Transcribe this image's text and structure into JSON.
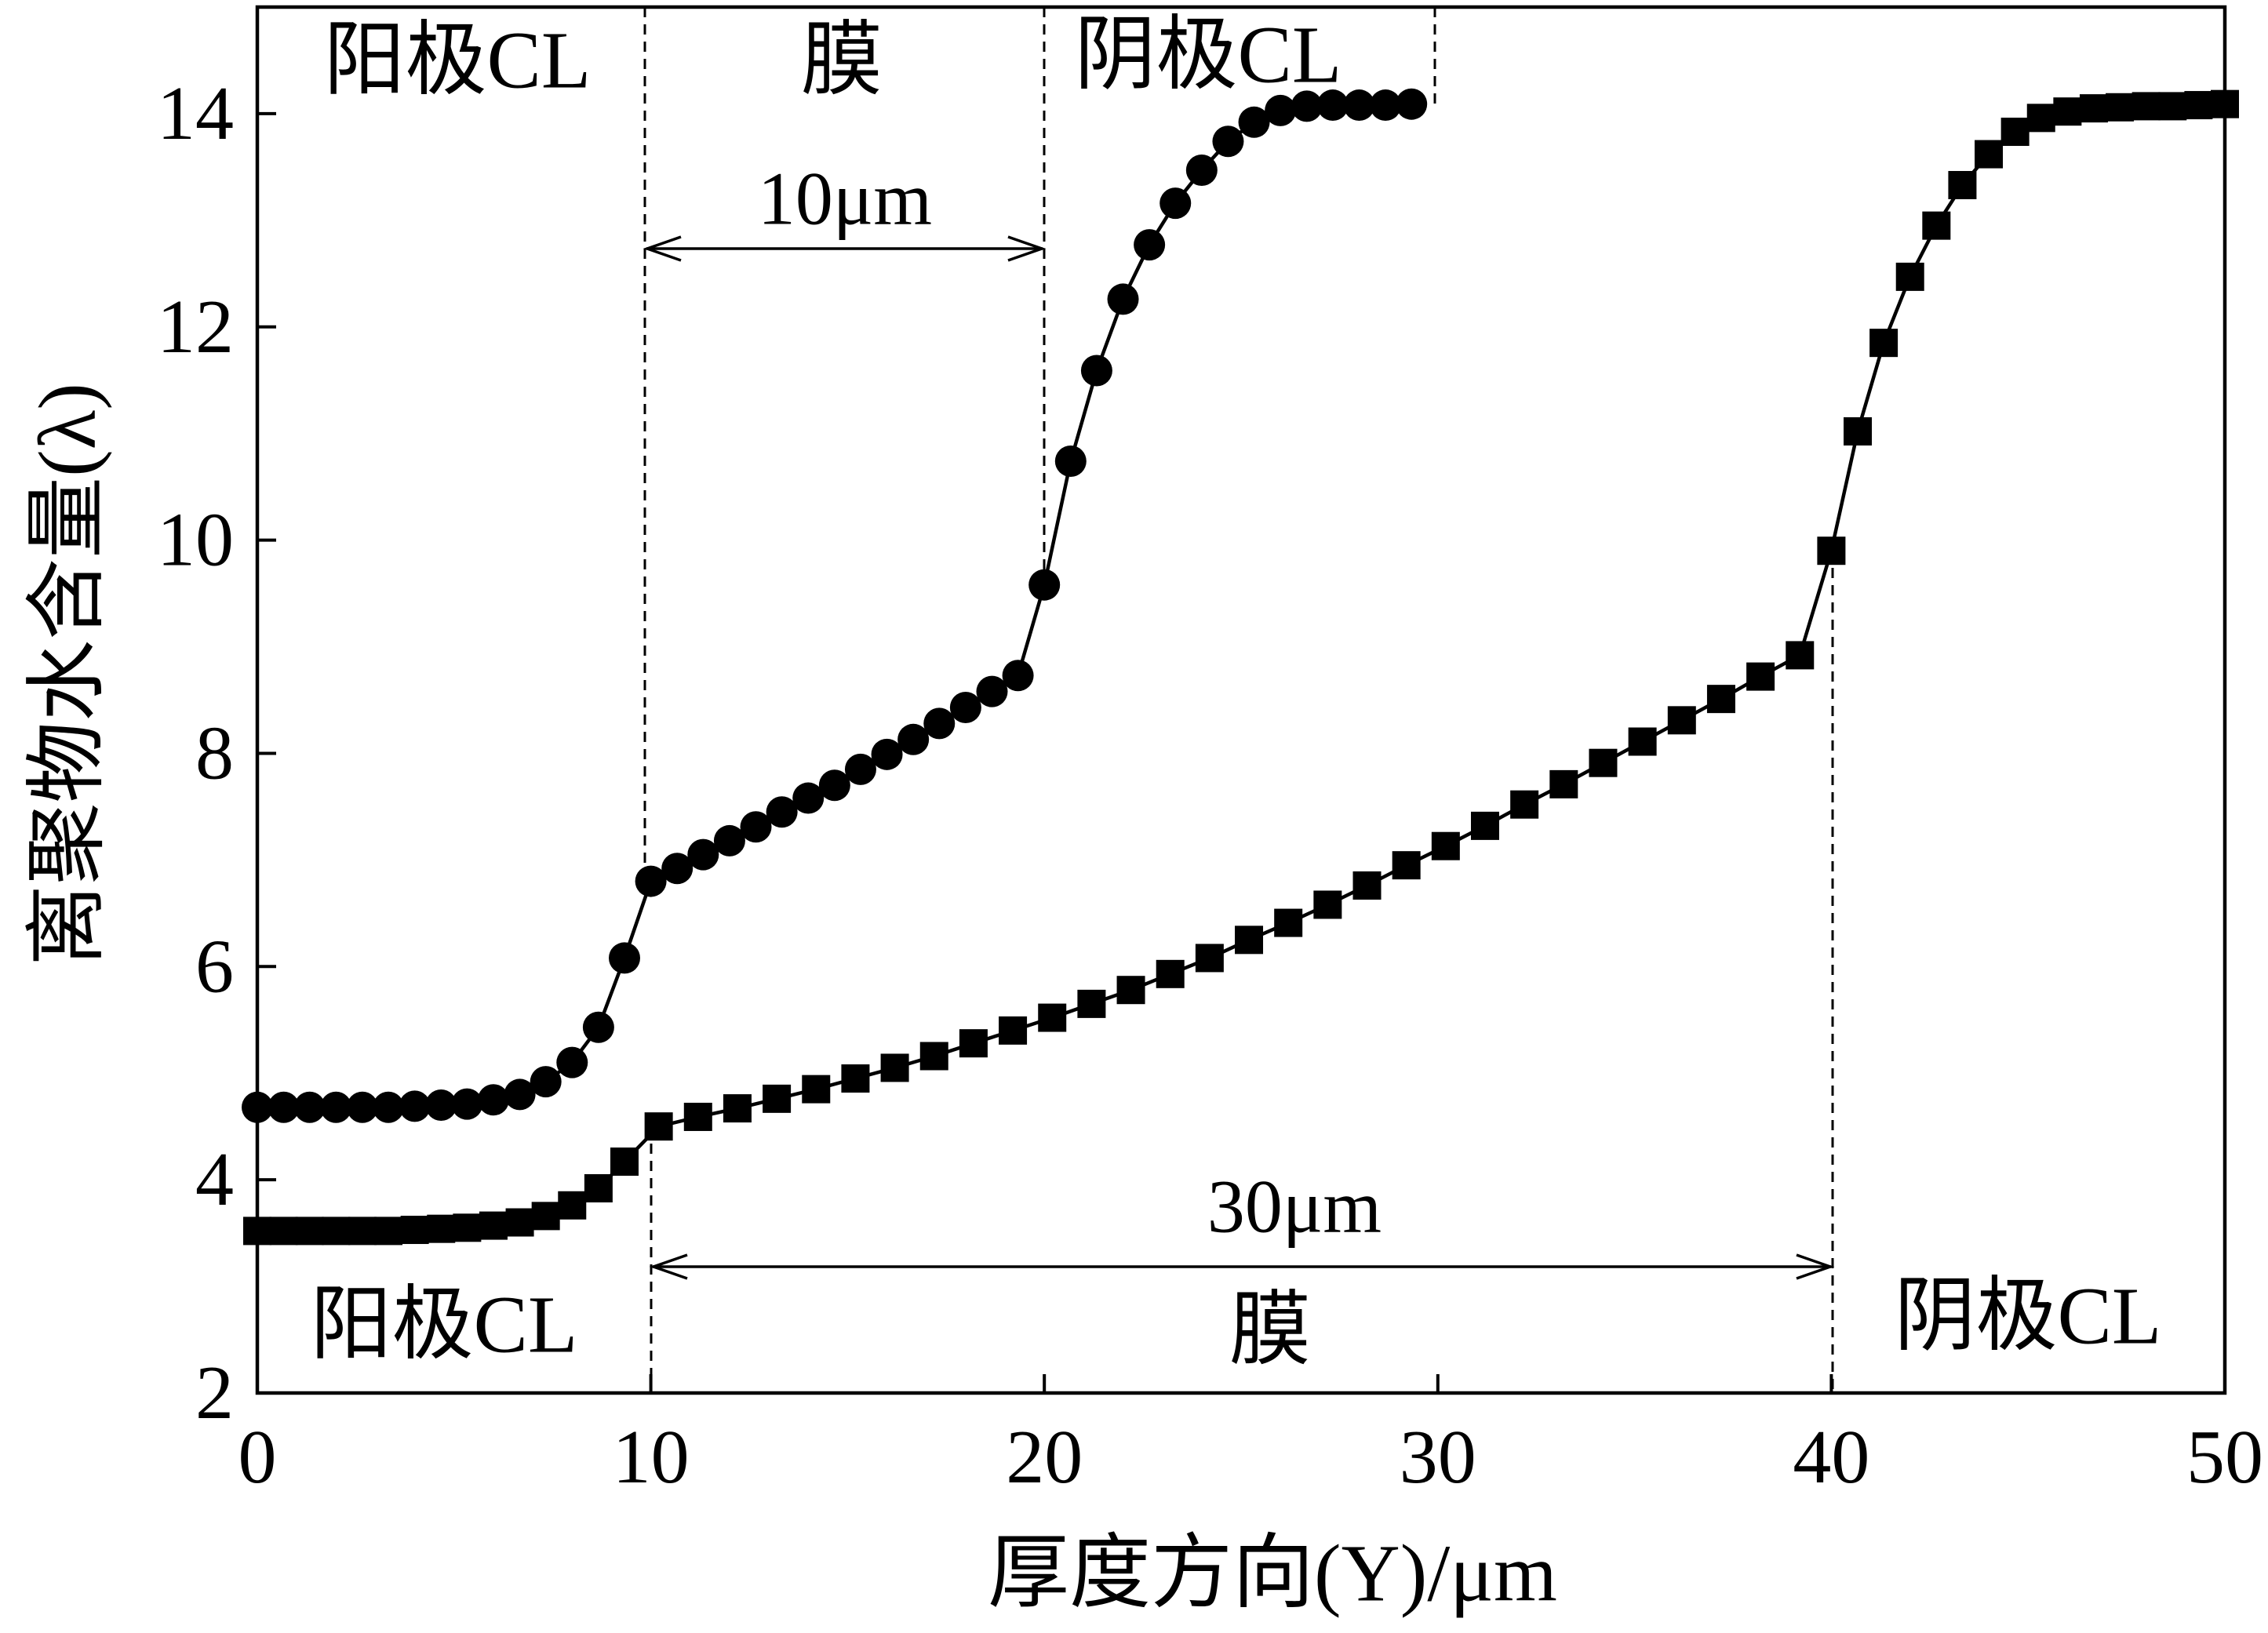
{
  "chart_data": {
    "type": "line",
    "xlabel": "厚度方向(Y)/μm",
    "ylabel": "离聚物水含量(λ)",
    "xlim": [
      0,
      50
    ],
    "ylim": [
      2,
      15
    ],
    "xticks": [
      0,
      10,
      20,
      30,
      40,
      50
    ],
    "yticks": [
      2,
      4,
      6,
      8,
      10,
      12,
      14
    ],
    "grid": false,
    "series": [
      {
        "marker": "circle",
        "color": "#000000",
        "x": [
          0,
          0.67,
          1.33,
          2,
          2.67,
          3.33,
          4,
          4.67,
          5.33,
          6,
          6.67,
          7.33,
          8,
          8.67,
          9.33,
          10,
          10.67,
          11.33,
          12,
          12.67,
          13.33,
          14,
          14.67,
          15.33,
          16,
          16.67,
          17.33,
          18,
          18.67,
          19.33,
          20,
          20.67,
          21.33,
          22,
          22.67,
          23.33,
          24,
          24.67,
          25.33,
          26,
          26.67,
          27.33,
          28,
          28.67,
          29.33
        ],
        "y": [
          4.68,
          4.68,
          4.68,
          4.68,
          4.68,
          4.68,
          4.69,
          4.7,
          4.71,
          4.75,
          4.8,
          4.92,
          5.1,
          5.43,
          6.08,
          6.8,
          6.92,
          7.05,
          7.18,
          7.31,
          7.45,
          7.58,
          7.7,
          7.85,
          7.99,
          8.13,
          8.28,
          8.43,
          8.58,
          8.73,
          9.58,
          10.74,
          11.59,
          12.26,
          12.77,
          13.16,
          13.47,
          13.74,
          13.92,
          14.03,
          14.07,
          14.08,
          14.08,
          14.08,
          14.09
        ]
      },
      {
        "marker": "square",
        "color": "#000000",
        "x": [
          0,
          0.67,
          1.33,
          2,
          2.67,
          3.33,
          4,
          4.67,
          5.33,
          6,
          6.67,
          7.33,
          8,
          8.67,
          9.33,
          10.2,
          11.2,
          12.2,
          13.2,
          14.2,
          15.2,
          16.2,
          17.2,
          18.2,
          19.2,
          20.2,
          21.2,
          22.2,
          23.2,
          24.2,
          25.2,
          26.2,
          27.2,
          28.2,
          29.2,
          30.2,
          31.2,
          32.2,
          33.2,
          34.2,
          35.2,
          36.2,
          37.2,
          38.2,
          39.2,
          40,
          40.67,
          41.33,
          42,
          42.67,
          43.33,
          44,
          44.67,
          45.33,
          46,
          46.67,
          47.33,
          48,
          48.67,
          49.33,
          50
        ],
        "y": [
          3.52,
          3.52,
          3.52,
          3.52,
          3.52,
          3.52,
          3.53,
          3.54,
          3.55,
          3.57,
          3.6,
          3.66,
          3.76,
          3.92,
          4.17,
          4.5,
          4.59,
          4.67,
          4.76,
          4.85,
          4.95,
          5.05,
          5.16,
          5.28,
          5.4,
          5.52,
          5.65,
          5.78,
          5.93,
          6.08,
          6.25,
          6.41,
          6.58,
          6.76,
          6.95,
          7.13,
          7.32,
          7.52,
          7.71,
          7.91,
          8.11,
          8.31,
          8.51,
          8.72,
          8.92,
          9.9,
          11.02,
          11.85,
          12.47,
          12.95,
          13.33,
          13.62,
          13.83,
          13.96,
          14.02,
          14.05,
          14.06,
          14.07,
          14.07,
          14.08,
          14.09
        ]
      }
    ],
    "annotations": {
      "top_anode": "阳极CL",
      "top_membrane": "膜",
      "top_cathode": "阴极CL",
      "top_thickness": "10μm",
      "bottom_anode": "阳极CL",
      "bottom_membrane": "膜",
      "bottom_cathode": "阴极CL",
      "bottom_thickness": "30μm"
    }
  }
}
